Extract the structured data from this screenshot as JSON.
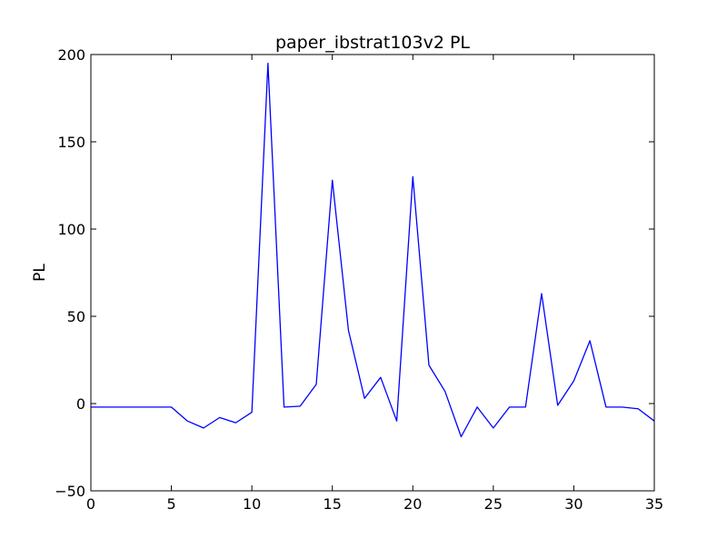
{
  "chart_data": {
    "type": "line",
    "title": "paper_ibstrat103v2 PL",
    "xlabel": "",
    "ylabel": "PL",
    "xlim": [
      0,
      35
    ],
    "ylim": [
      -50,
      200
    ],
    "xticks": [
      0,
      5,
      10,
      15,
      20,
      25,
      30,
      35
    ],
    "yticks": [
      -50,
      0,
      50,
      100,
      150,
      200
    ],
    "grid": false,
    "series": [
      {
        "color": "#0000ff",
        "x": [
          0,
          1,
          2,
          3,
          4,
          5,
          6,
          7,
          8,
          9,
          10,
          11,
          12,
          13,
          14,
          15,
          16,
          17,
          18,
          19,
          20,
          21,
          22,
          23,
          24,
          25,
          26,
          27,
          28,
          29,
          30,
          31,
          32,
          33,
          34,
          35
        ],
        "y": [
          -2,
          -2,
          -2,
          -2,
          -2,
          -2,
          -10,
          -14,
          -8,
          -11,
          -5,
          195,
          -2,
          -1.5,
          11,
          128,
          42,
          3,
          15,
          -10,
          130,
          22,
          7,
          -19,
          -2,
          -14,
          -2,
          -2,
          63,
          -1,
          13,
          36,
          -2,
          -2,
          -3,
          -10
        ]
      }
    ]
  }
}
